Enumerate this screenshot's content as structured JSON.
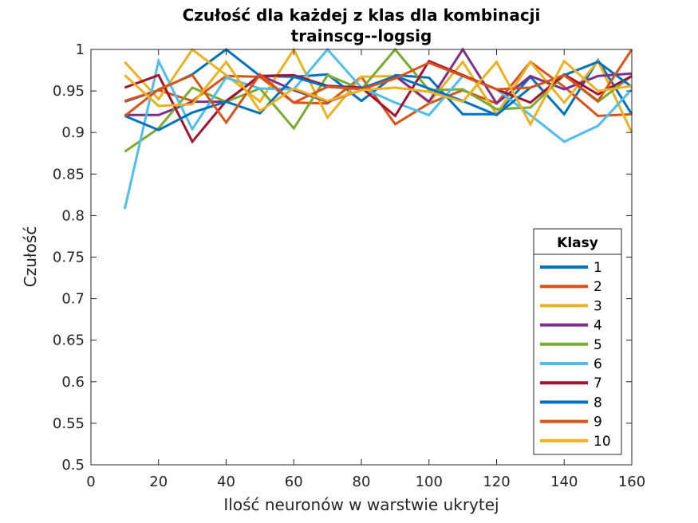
{
  "chart_data": {
    "type": "line",
    "title": [
      "Czułość dla każdej z klas dla kombinacji",
      "trainscg--logsig"
    ],
    "xlabel": "Ilość neuronów w warstwie ukrytej",
    "ylabel": "Czułość",
    "xlim": [
      0,
      160
    ],
    "ylim": [
      0.5,
      1
    ],
    "xticks": [
      "0",
      "20",
      "40",
      "60",
      "80",
      "100",
      "120",
      "140",
      "160"
    ],
    "yticks": [
      "0.5",
      "0.55",
      "0.6",
      "0.65",
      "0.7",
      "0.75",
      "0.8",
      "0.85",
      "0.9",
      "0.95",
      "1"
    ],
    "grid": false,
    "legend": {
      "title": "Klasy",
      "position": "bottom-right"
    },
    "x": [
      10,
      20,
      30,
      40,
      50,
      60,
      70,
      80,
      90,
      100,
      110,
      120,
      130,
      140,
      150,
      160
    ],
    "series": [
      {
        "name": "1",
        "color": "#0072BD",
        "values": [
          0.937,
          0.951,
          0.97,
          1.0,
          0.968,
          0.967,
          0.97,
          0.938,
          0.969,
          0.966,
          0.922,
          0.922,
          0.967,
          0.922,
          0.987,
          0.922
        ]
      },
      {
        "name": "2",
        "color": "#D95319",
        "values": [
          0.938,
          0.951,
          0.938,
          0.968,
          0.967,
          0.936,
          0.935,
          0.967,
          0.91,
          0.935,
          0.951,
          0.935,
          0.985,
          0.955,
          0.92,
          0.922
        ]
      },
      {
        "name": "3",
        "color": "#EDB120",
        "values": [
          0.985,
          0.94,
          1.0,
          0.969,
          0.937,
          1.0,
          0.918,
          0.967,
          0.968,
          0.936,
          0.985,
          0.922,
          0.985,
          0.936,
          0.986,
          0.9
        ]
      },
      {
        "name": "4",
        "color": "#7E2F8E",
        "values": [
          0.921,
          0.921,
          0.937,
          0.937,
          0.969,
          0.951,
          0.937,
          0.951,
          0.968,
          0.937,
          1.0,
          0.935,
          0.968,
          0.952,
          0.968,
          0.971
        ]
      },
      {
        "name": "5",
        "color": "#77AC30",
        "values": [
          0.877,
          0.905,
          0.954,
          0.937,
          0.953,
          0.905,
          0.969,
          0.952,
          1.0,
          0.951,
          0.952,
          0.928,
          0.93,
          0.969,
          0.937,
          0.968
        ]
      },
      {
        "name": "6",
        "color": "#4DBEEE",
        "values": [
          0.808,
          0.986,
          0.904,
          0.966,
          0.953,
          0.952,
          1.0,
          0.954,
          0.936,
          0.921,
          0.968,
          0.952,
          0.921,
          0.889,
          0.908,
          0.952
        ]
      },
      {
        "name": "7",
        "color": "#A2142F",
        "values": [
          0.954,
          0.969,
          0.889,
          0.938,
          0.968,
          0.969,
          0.956,
          0.954,
          0.92,
          0.986,
          0.969,
          0.952,
          0.936,
          0.97,
          0.946,
          0.968
        ]
      },
      {
        "name": "8",
        "color": "#0072BD",
        "values": [
          0.92,
          0.903,
          0.924,
          0.937,
          0.923,
          0.967,
          0.955,
          0.953,
          0.968,
          0.953,
          0.938,
          0.921,
          0.954,
          0.969,
          0.985,
          0.955
        ]
      },
      {
        "name": "9",
        "color": "#D95319",
        "values": [
          0.92,
          0.952,
          0.969,
          0.912,
          0.97,
          0.936,
          0.955,
          0.952,
          0.965,
          0.984,
          0.968,
          0.952,
          0.954,
          0.969,
          0.938,
          1.0
        ]
      },
      {
        "name": "10",
        "color": "#EDB120",
        "values": [
          0.969,
          0.932,
          0.934,
          0.985,
          0.926,
          0.953,
          0.938,
          0.951,
          0.954,
          0.949,
          0.937,
          0.985,
          0.91,
          0.986,
          0.95,
          0.956
        ]
      }
    ]
  }
}
